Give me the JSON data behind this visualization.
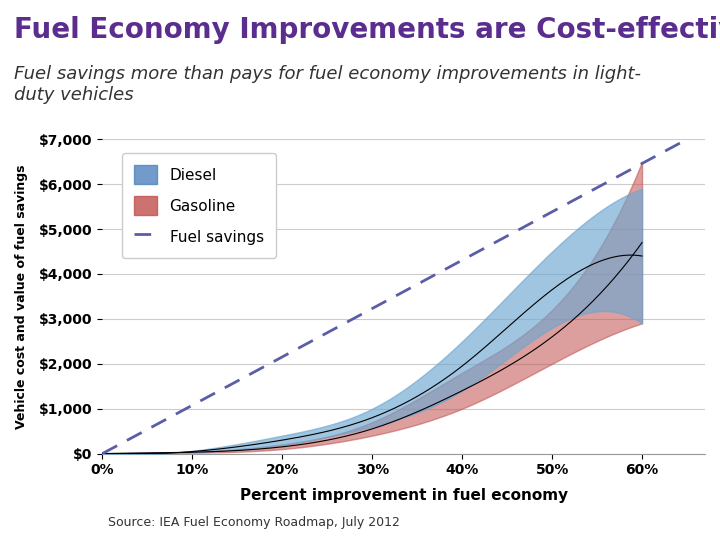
{
  "title": "Fuel Economy Improvements are Cost-effective",
  "subtitle": "Fuel savings more than pays for fuel economy improvements in light-\nduty vehicles",
  "xlabel": "Percent improvement in fuel economy",
  "ylabel": "Vehicle cost and value of fuel savings",
  "source": "Source: IEA Fuel Economy Roadmap, July 2012",
  "title_color": "#5B2D8E",
  "title_fontsize": 20,
  "subtitle_fontsize": 13,
  "background_color": "#FFFFFF",
  "chart_bg": "#FFFFFF",
  "xlim": [
    0,
    0.67
  ],
  "ylim": [
    0,
    7000
  ],
  "yticks": [
    0,
    1000,
    2000,
    3000,
    4000,
    5000,
    6000,
    7000
  ],
  "ytick_labels": [
    "$0",
    "$1,000",
    "$2,000",
    "$3,000",
    "$4,000",
    "$5,000",
    "$6,000",
    "$7,000"
  ],
  "xticks": [
    0,
    0.1,
    0.2,
    0.3,
    0.4,
    0.5,
    0.6
  ],
  "xtick_labels": [
    "0%",
    "10%",
    "20%",
    "30%",
    "40%",
    "50%",
    "60%"
  ],
  "diesel_color": "#6EA6D0",
  "gasoline_color": "#C0504D",
  "fuel_savings_color": "#5B5EA6",
  "legend_diesel_color": "#4F81BD",
  "legend_gasoline_color": "#C0504D"
}
